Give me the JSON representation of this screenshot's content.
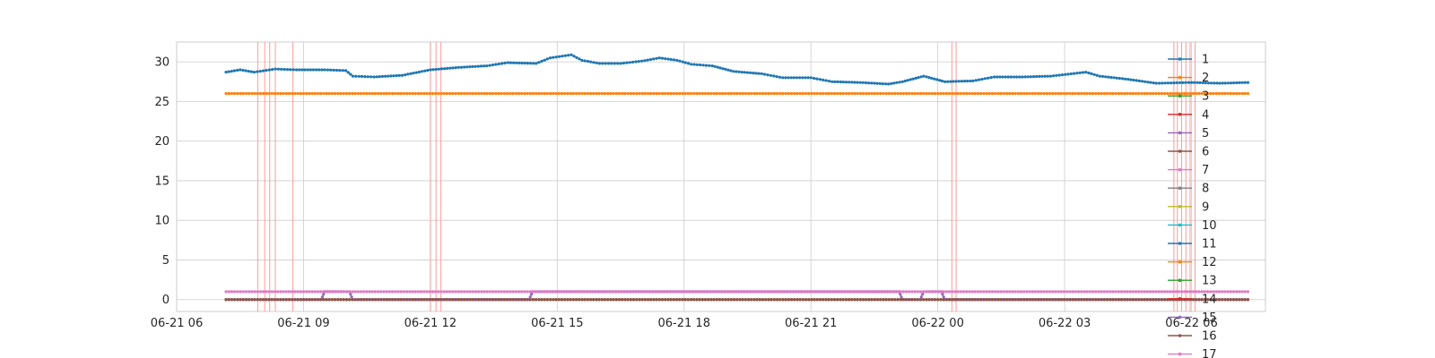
{
  "chart_data": {
    "type": "line",
    "title": "",
    "xlabel": "",
    "ylabel": "",
    "grid": true,
    "legend_placement": "right",
    "x_range": [
      "2021-06-21 06:00",
      "2021-06-22 07:45"
    ],
    "ylim": [
      -1.5,
      32.5
    ],
    "x_ticks": [
      {
        "label": "06-21 06",
        "t": "2021-06-21 06:00"
      },
      {
        "label": "06-21 09",
        "t": "2021-06-21 09:00"
      },
      {
        "label": "06-21 12",
        "t": "2021-06-21 12:00"
      },
      {
        "label": "06-21 15",
        "t": "2021-06-21 15:00"
      },
      {
        "label": "06-21 18",
        "t": "2021-06-21 18:00"
      },
      {
        "label": "06-21 21",
        "t": "2021-06-21 21:00"
      },
      {
        "label": "06-22 00",
        "t": "2021-06-22 00:00"
      },
      {
        "label": "06-22 03",
        "t": "2021-06-22 03:00"
      },
      {
        "label": "06-22 06",
        "t": "2021-06-22 06:00"
      }
    ],
    "y_ticks": [
      0,
      5,
      10,
      15,
      20,
      25,
      30
    ],
    "vertical_markers": [
      "2021-06-21 07:55",
      "2021-06-21 08:05",
      "2021-06-21 08:12",
      "2021-06-21 08:20",
      "2021-06-21 08:45",
      "2021-06-21 12:00",
      "2021-06-21 12:08",
      "2021-06-21 12:15",
      "2021-06-22 00:20",
      "2021-06-22 00:26",
      "2021-06-22 05:35",
      "2021-06-22 05:40",
      "2021-06-22 05:46",
      "2021-06-22 05:52",
      "2021-06-22 05:58",
      "2021-06-22 06:05"
    ],
    "series": [
      {
        "name": "1",
        "color": "#1f77b4",
        "points": [
          [
            "2021-06-21 07:10",
            28.7
          ],
          [
            "2021-06-21 07:30",
            29.0
          ],
          [
            "2021-06-21 07:50",
            28.7
          ],
          [
            "2021-06-21 08:20",
            29.1
          ],
          [
            "2021-06-21 08:50",
            29.0
          ],
          [
            "2021-06-21 09:30",
            29.0
          ],
          [
            "2021-06-21 10:00",
            28.9
          ],
          [
            "2021-06-21 10:10",
            28.2
          ],
          [
            "2021-06-21 10:40",
            28.1
          ],
          [
            "2021-06-21 11:20",
            28.3
          ],
          [
            "2021-06-21 12:00",
            29.0
          ],
          [
            "2021-06-21 12:40",
            29.3
          ],
          [
            "2021-06-21 13:20",
            29.5
          ],
          [
            "2021-06-21 13:50",
            29.9
          ],
          [
            "2021-06-21 14:30",
            29.8
          ],
          [
            "2021-06-21 14:50",
            30.5
          ],
          [
            "2021-06-21 15:20",
            30.9
          ],
          [
            "2021-06-21 15:35",
            30.2
          ],
          [
            "2021-06-21 16:00",
            29.8
          ],
          [
            "2021-06-21 16:30",
            29.8
          ],
          [
            "2021-06-21 17:00",
            30.1
          ],
          [
            "2021-06-21 17:25",
            30.5
          ],
          [
            "2021-06-21 17:50",
            30.2
          ],
          [
            "2021-06-21 18:10",
            29.7
          ],
          [
            "2021-06-21 18:40",
            29.5
          ],
          [
            "2021-06-21 19:10",
            28.8
          ],
          [
            "2021-06-21 19:50",
            28.5
          ],
          [
            "2021-06-21 20:20",
            28.0
          ],
          [
            "2021-06-21 21:00",
            28.0
          ],
          [
            "2021-06-21 21:30",
            27.5
          ],
          [
            "2021-06-21 22:10",
            27.4
          ],
          [
            "2021-06-21 22:50",
            27.2
          ],
          [
            "2021-06-21 23:10",
            27.5
          ],
          [
            "2021-06-21 23:40",
            28.2
          ],
          [
            "2021-06-22 00:10",
            27.5
          ],
          [
            "2021-06-22 00:50",
            27.6
          ],
          [
            "2021-06-22 01:20",
            28.1
          ],
          [
            "2021-06-22 02:00",
            28.1
          ],
          [
            "2021-06-22 02:40",
            28.2
          ],
          [
            "2021-06-22 03:30",
            28.7
          ],
          [
            "2021-06-22 03:50",
            28.2
          ],
          [
            "2021-06-22 04:30",
            27.8
          ],
          [
            "2021-06-22 05:10",
            27.3
          ],
          [
            "2021-06-22 06:00",
            27.4
          ],
          [
            "2021-06-22 06:40",
            27.3
          ],
          [
            "2021-06-22 07:20",
            27.4
          ]
        ]
      },
      {
        "name": "2",
        "color": "#ff7f0e",
        "points": [
          [
            "2021-06-21 07:10",
            26.0
          ],
          [
            "2021-06-22 07:20",
            26.0
          ]
        ]
      },
      {
        "name": "3",
        "color": "#2ca02c",
        "points": [
          [
            "2021-06-21 07:10",
            0.0
          ],
          [
            "2021-06-22 07:20",
            0.0
          ]
        ]
      },
      {
        "name": "4",
        "color": "#d62728",
        "points": [
          [
            "2021-06-21 07:10",
            0.0
          ],
          [
            "2021-06-22 07:20",
            0.0
          ]
        ]
      },
      {
        "name": "5",
        "color": "#9467bd",
        "points": [
          [
            "2021-06-21 07:10",
            0.0
          ],
          [
            "2021-06-21 09:25",
            0.0
          ],
          [
            "2021-06-21 09:30",
            1.0
          ],
          [
            "2021-06-21 10:05",
            1.0
          ],
          [
            "2021-06-21 10:10",
            0.0
          ],
          [
            "2021-06-21 14:20",
            0.0
          ],
          [
            "2021-06-21 14:25",
            1.0
          ],
          [
            "2021-06-21 23:05",
            1.0
          ],
          [
            "2021-06-21 23:10",
            0.0
          ],
          [
            "2021-06-21 23:35",
            0.0
          ],
          [
            "2021-06-21 23:40",
            1.0
          ],
          [
            "2021-06-22 00:05",
            1.0
          ],
          [
            "2021-06-22 00:10",
            0.0
          ],
          [
            "2021-06-22 07:20",
            0.0
          ]
        ]
      },
      {
        "name": "6",
        "color": "#8c564b",
        "points": [
          [
            "2021-06-21 07:10",
            0.0
          ],
          [
            "2021-06-22 07:20",
            0.0
          ]
        ]
      },
      {
        "name": "7",
        "color": "#e377c2",
        "points": [
          [
            "2021-06-21 07:10",
            1.0
          ],
          [
            "2021-06-22 07:20",
            1.0
          ]
        ]
      },
      {
        "name": "8",
        "color": "#7f7f7f",
        "points": []
      },
      {
        "name": "9",
        "color": "#bcbd22",
        "points": []
      },
      {
        "name": "10",
        "color": "#17becf",
        "points": []
      },
      {
        "name": "11",
        "color": "#1f77b4",
        "points": []
      },
      {
        "name": "12",
        "color": "#ff7f0e",
        "points": []
      },
      {
        "name": "13",
        "color": "#2ca02c",
        "points": []
      },
      {
        "name": "14",
        "color": "#d62728",
        "points": []
      },
      {
        "name": "15",
        "color": "#9467bd",
        "points": []
      },
      {
        "name": "16",
        "color": "#8c564b",
        "points": []
      },
      {
        "name": "17",
        "color": "#e377c2",
        "points": []
      }
    ],
    "colors": {
      "grid": "#cccccc",
      "axes_edge": "#cccccc",
      "marker_line": "#ff9999",
      "text": "#262626"
    }
  }
}
